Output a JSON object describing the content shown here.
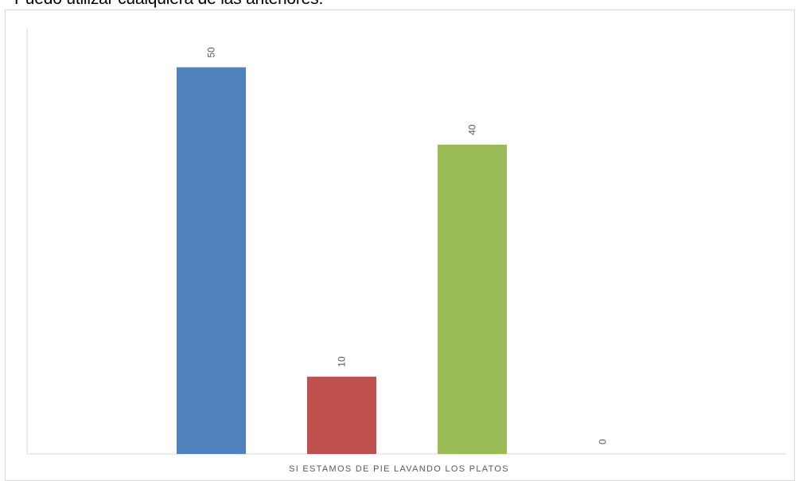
{
  "header_text": "Puedo utilizar cualquiera de las anteriores.",
  "chart_data": {
    "type": "bar",
    "categories": [
      "SI ESTAMOS DE PIE LAVANDO LOS PLATOS"
    ],
    "series": [
      {
        "values": [
          50
        ],
        "color": "#4f81bd"
      },
      {
        "values": [
          10
        ],
        "color": "#c0504d"
      },
      {
        "values": [
          40
        ],
        "color": "#9bbb59"
      },
      {
        "values": [
          0
        ],
        "color": "#8064a2"
      }
    ],
    "ylim": [
      0,
      55
    ],
    "grid": false,
    "legend": "none",
    "data_labels": true
  }
}
